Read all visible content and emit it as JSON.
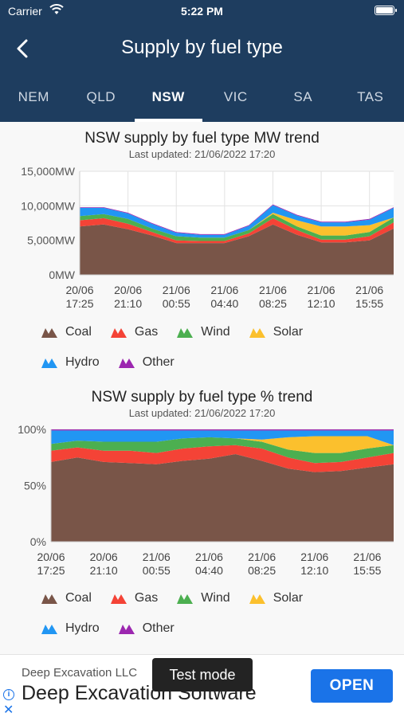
{
  "status_bar": {
    "carrier": "Carrier",
    "time": "5:22 PM"
  },
  "nav": {
    "title": "Supply by fuel type"
  },
  "tabs": [
    {
      "label": "NEM",
      "active": false
    },
    {
      "label": "QLD",
      "active": false
    },
    {
      "label": "NSW",
      "active": true
    },
    {
      "label": "VIC",
      "active": false
    },
    {
      "label": "SA",
      "active": false
    },
    {
      "label": "TAS",
      "active": false
    }
  ],
  "legend": [
    {
      "label": "Coal",
      "color": "#795548"
    },
    {
      "label": "Gas",
      "color": "#f44336"
    },
    {
      "label": "Wind",
      "color": "#4caf50"
    },
    {
      "label": "Solar",
      "color": "#fbc02d"
    },
    {
      "label": "Hydro",
      "color": "#2196f3"
    },
    {
      "label": "Other",
      "color": "#9c27b0"
    }
  ],
  "chart_data": [
    {
      "type": "area",
      "title": "NSW supply by fuel type MW trend",
      "subtitle": "Last updated: 21/06/2022 17:20",
      "stacked": true,
      "ylim": [
        0,
        15000
      ],
      "y_ticks": [
        0,
        5000,
        10000,
        15000
      ],
      "y_tick_labels": [
        "0MW",
        "5,000MW",
        "10,000MW",
        "15,000MW"
      ],
      "x": [
        "20/06 17:25",
        "20/06 19:00",
        "20/06 21:10",
        "20/06 23:00",
        "21/06 00:55",
        "21/06 02:50",
        "21/06 04:40",
        "21/06 06:30",
        "21/06 08:25",
        "21/06 10:20",
        "21/06 12:10",
        "21/06 14:00",
        "21/06 15:55",
        "21/06 17:20"
      ],
      "x_tick_labels": [
        {
          "date": "20/06",
          "time": "17:25"
        },
        {
          "date": "20/06",
          "time": "21:10"
        },
        {
          "date": "21/06",
          "time": "00:55"
        },
        {
          "date": "21/06",
          "time": "04:40"
        },
        {
          "date": "21/06",
          "time": "08:25"
        },
        {
          "date": "21/06",
          "time": "12:10"
        },
        {
          "date": "21/06",
          "time": "15:55"
        }
      ],
      "grid": true,
      "series": [
        {
          "name": "Coal",
          "color": "#795548",
          "values": [
            7000,
            7300,
            6600,
            5700,
            4600,
            4600,
            4600,
            5600,
            7300,
            5800,
            4700,
            4700,
            5000,
            6700
          ]
        },
        {
          "name": "Gas",
          "color": "#f44336",
          "values": [
            900,
            900,
            800,
            500,
            400,
            300,
            300,
            400,
            900,
            700,
            400,
            400,
            600,
            900
          ]
        },
        {
          "name": "Wind",
          "color": "#4caf50",
          "values": [
            600,
            600,
            700,
            500,
            600,
            500,
            500,
            500,
            600,
            500,
            600,
            600,
            600,
            700
          ]
        },
        {
          "name": "Solar",
          "color": "#fbc02d",
          "values": [
            0,
            0,
            0,
            0,
            0,
            0,
            0,
            0,
            200,
            900,
            1300,
            1300,
            1000,
            0
          ]
        },
        {
          "name": "Hydro",
          "color": "#2196f3",
          "values": [
            1200,
            900,
            800,
            700,
            500,
            400,
            400,
            600,
            1100,
            700,
            600,
            600,
            800,
            1400
          ]
        },
        {
          "name": "Other",
          "color": "#9c27b0",
          "values": [
            100,
            100,
            100,
            100,
            100,
            100,
            100,
            100,
            100,
            100,
            100,
            100,
            100,
            100
          ]
        }
      ]
    },
    {
      "type": "area",
      "title": "NSW supply by fuel type % trend",
      "subtitle": "Last updated: 21/06/2022 17:20",
      "stacked": true,
      "ylim": [
        0,
        100
      ],
      "y_ticks": [
        0,
        50,
        100
      ],
      "y_tick_labels": [
        "0%",
        "50%",
        "100%"
      ],
      "x": [
        "20/06 17:25",
        "20/06 19:00",
        "20/06 21:10",
        "20/06 23:00",
        "21/06 00:55",
        "21/06 02:50",
        "21/06 04:40",
        "21/06 06:30",
        "21/06 08:25",
        "21/06 10:20",
        "21/06 12:10",
        "21/06 14:00",
        "21/06 15:55",
        "21/06 17:20"
      ],
      "x_tick_labels": [
        {
          "date": "20/06",
          "time": "17:25"
        },
        {
          "date": "20/06",
          "time": "21:10"
        },
        {
          "date": "21/06",
          "time": "00:55"
        },
        {
          "date": "21/06",
          "time": "04:40"
        },
        {
          "date": "21/06",
          "time": "08:25"
        },
        {
          "date": "21/06",
          "time": "12:10"
        },
        {
          "date": "21/06",
          "time": "15:55"
        }
      ],
      "grid": true,
      "series": [
        {
          "name": "Coal",
          "color": "#795548",
          "values": [
            71,
            75,
            71,
            70,
            69,
            72,
            74,
            78,
            72,
            65,
            62,
            63,
            66,
            69
          ]
        },
        {
          "name": "Gas",
          "color": "#f44336",
          "values": [
            10,
            9,
            10,
            11,
            10,
            11,
            11,
            8,
            11,
            10,
            8,
            8,
            9,
            10
          ]
        },
        {
          "name": "Wind",
          "color": "#4caf50",
          "values": [
            6,
            6,
            8,
            8,
            10,
            9,
            8,
            6,
            6,
            7,
            9,
            8,
            8,
            7
          ]
        },
        {
          "name": "Solar",
          "color": "#fbc02d",
          "values": [
            0,
            0,
            0,
            0,
            0,
            0,
            0,
            0,
            2,
            11,
            15,
            15,
            11,
            0
          ]
        },
        {
          "name": "Hydro",
          "color": "#2196f3",
          "values": [
            12,
            9,
            10,
            10,
            10,
            7,
            6,
            7,
            8,
            6,
            5,
            5,
            5,
            13
          ]
        },
        {
          "name": "Other",
          "color": "#9c27b0",
          "values": [
            1,
            1,
            1,
            1,
            1,
            1,
            1,
            1,
            1,
            1,
            1,
            1,
            1,
            1
          ]
        }
      ]
    }
  ],
  "ad": {
    "advertiser": "Deep Excavation LLC",
    "headline": "Deep Excavation Software",
    "cta": "OPEN",
    "toast": "Test mode",
    "info_icon": "info-icon",
    "close_icon": "close-icon"
  }
}
